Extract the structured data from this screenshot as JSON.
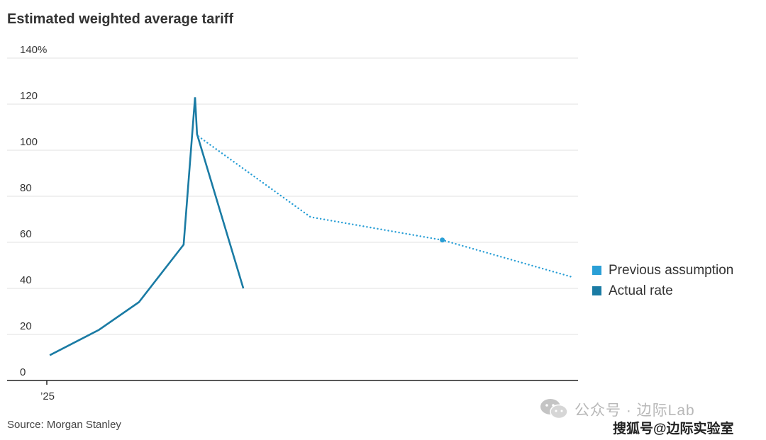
{
  "chart_data": {
    "type": "line",
    "title": "Estimated weighted average tariff",
    "y_tick_labels": [
      "0",
      "20",
      "40",
      "60",
      "80",
      "100",
      "120",
      "140%"
    ],
    "x_tick_labels": [
      "’25"
    ],
    "ylim": [
      0,
      140
    ],
    "grid": true,
    "legend_position": "right",
    "series": [
      {
        "name": "Actual rate",
        "style": "solid",
        "color": "#1a7ba4",
        "points": [
          [
            0.06,
            11
          ],
          [
            1.05,
            22
          ],
          [
            1.85,
            34
          ],
          [
            2.75,
            59
          ],
          [
            2.98,
            123
          ],
          [
            3.02,
            107
          ],
          [
            3.95,
            40
          ]
        ]
      },
      {
        "name": "Previous assumption",
        "style": "dotted",
        "color": "#2a9fd6",
        "points": [
          [
            3.05,
            106
          ],
          [
            5.3,
            71
          ],
          [
            7.95,
            61
          ],
          [
            10.55,
            45
          ]
        ],
        "markers": [
          [
            7.95,
            61
          ]
        ]
      }
    ],
    "legend": [
      {
        "label": "Previous assumption",
        "color": "#2a9fd6"
      },
      {
        "label": "Actual rate",
        "color": "#1a7ba4"
      }
    ],
    "source": "Source: Morgan Stanley"
  },
  "watermark": {
    "line1": "公众号 · 边际Lab",
    "line2": "搜狐号@边际实验室",
    "icon": "wechat-icon"
  }
}
